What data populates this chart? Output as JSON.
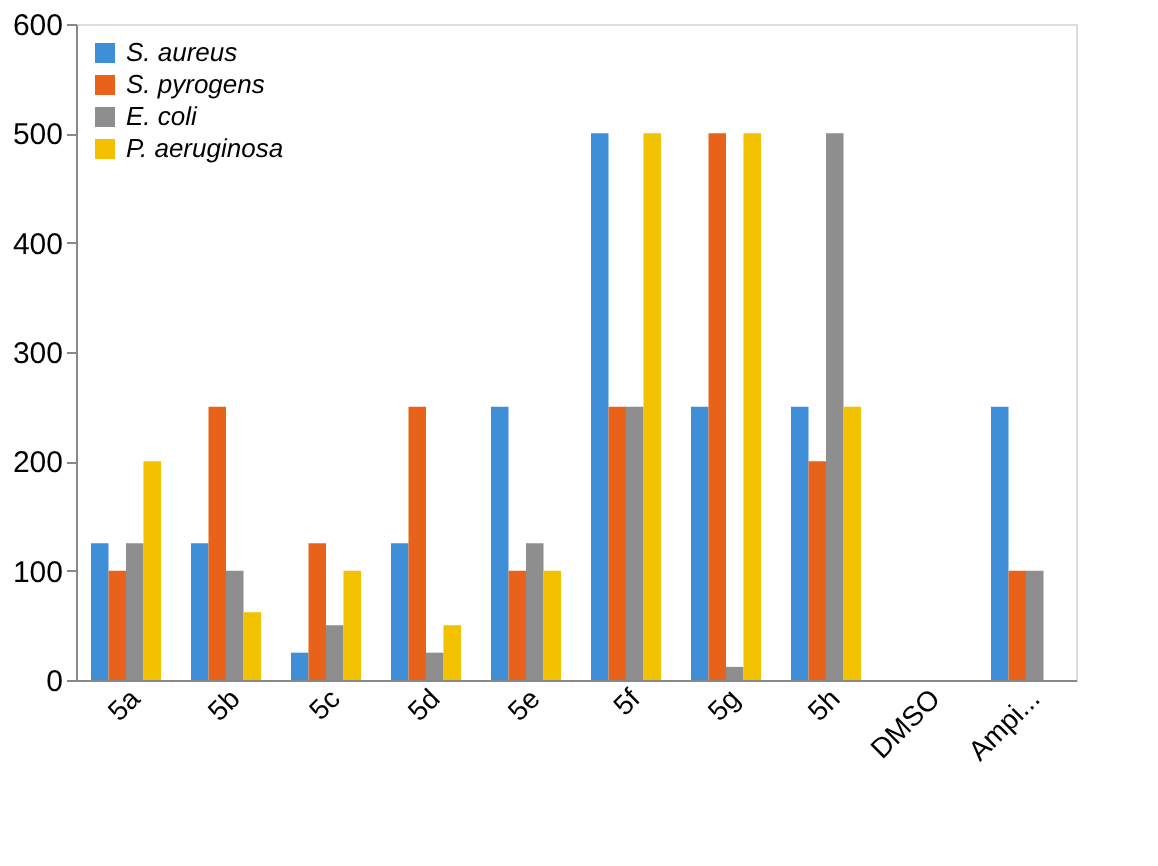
{
  "chart_data": {
    "type": "bar",
    "categories": [
      "5a",
      "5b",
      "5c",
      "5d",
      "5e",
      "5f",
      "5g",
      "5h",
      "DMSO",
      "Ampi..."
    ],
    "series": [
      {
        "name": "S. aureus",
        "color": "#3f8fd8",
        "values": [
          125,
          125,
          25,
          125,
          250,
          500,
          250,
          250,
          null,
          250
        ]
      },
      {
        "name": "S. pyrogens",
        "color": "#e8621a",
        "values": [
          100,
          250,
          125,
          250,
          100,
          250,
          500,
          200,
          null,
          100
        ]
      },
      {
        "name": "E. coli",
        "color": "#8e8e8e",
        "values": [
          125,
          100,
          50,
          25,
          125,
          250,
          12,
          500,
          null,
          100
        ]
      },
      {
        "name": "P. aeruginosa",
        "color": "#f2c200",
        "values": [
          200,
          62,
          100,
          50,
          100,
          500,
          500,
          250,
          null,
          null
        ]
      }
    ],
    "ylim": [
      0,
      600
    ],
    "yticks": [
      0,
      100,
      200,
      300,
      400,
      500,
      600
    ],
    "grid": false,
    "legend": "top left"
  }
}
